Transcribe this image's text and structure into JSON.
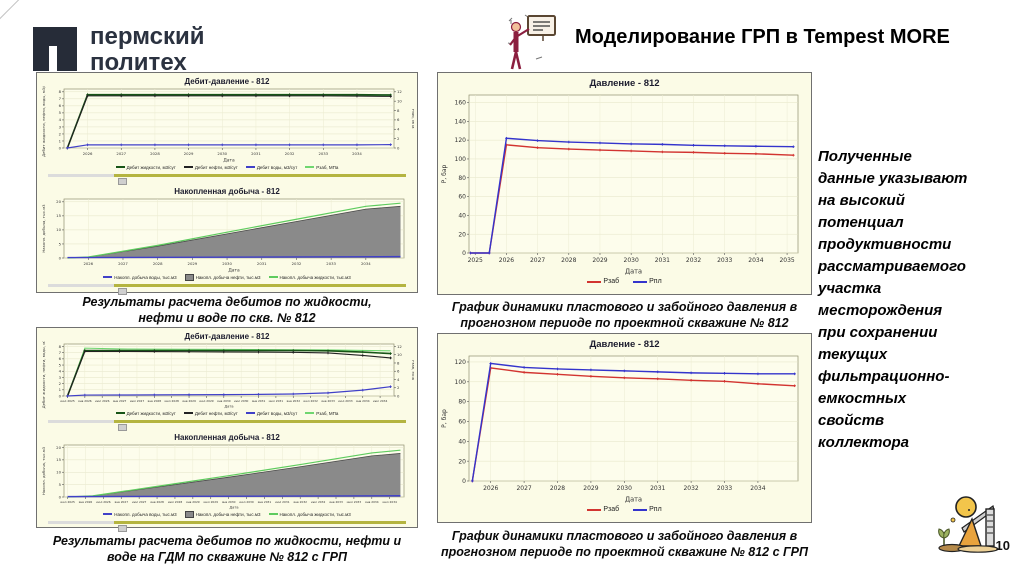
{
  "logo": {
    "line1": "пермский",
    "line2": "политех"
  },
  "header": {
    "title": "Моделирование ГРП в Tempest MORE"
  },
  "conclusion": "Полученные\nданные указывают\nна высокий\nпотенциал\nпродуктивности\nрассматриваемого\nучастка\nместорождения\nпри сохранении\nтекущих\nфильтрационно-\nемкостных\nсвойств\nколлектора",
  "captions": {
    "a": "Результаты расчета дебитов по жидкости,\nнефти и воде по скв. № 812",
    "b": "Результаты расчета дебитов по жидкости, нефти и\nводе на ГДМ по скважине № 812 с ГРП",
    "c": "График динамики пластового и забойного давления в\nпрогнозном периоде по проектной скважине № 812",
    "d": "График динамики пластового и забойного давления в\nпрогнозном периоде по проектной скважине № 812 с ГРП"
  },
  "page_number": "10",
  "colors": {
    "panel_bg": "#fbfbe6",
    "dark_green": "#175417",
    "light_green": "#6fd66f",
    "blue": "#4040c8",
    "red": "#d23430",
    "gray_fill": "#8a8a8a",
    "logo_navy": "#262c38",
    "scroll_olive": "#b4b440"
  },
  "chart_data": [
    {
      "id": "chartA1",
      "type": "line",
      "title": "Дебит-давление - 812",
      "xlabel": "Дата",
      "ylabel": "Дебит жидкости, нефти, воды, м3/сут",
      "ylabel_right": "Pзаб, МПа",
      "xlim": [
        2025.3,
        2035.1
      ],
      "ylim": [
        0,
        8.4
      ],
      "ylim_right": [
        0,
        12.6
      ],
      "xticks": [
        2026,
        2027,
        2028,
        2029,
        2030,
        2031,
        2032,
        2033,
        2034
      ],
      "yticks": [
        0,
        1,
        2,
        3,
        4,
        5,
        6,
        7,
        8
      ],
      "yticks_right": [
        0,
        2,
        4,
        6,
        8,
        10,
        12
      ],
      "series": [
        {
          "name": "Pзаб, МПа",
          "axis": "right",
          "color": "#6fd66f",
          "w": 1.1,
          "x": [
            2025.4,
            2026,
            2028,
            2030,
            2032,
            2034,
            2035
          ],
          "y": [
            0,
            11.35,
            11.3,
            11.3,
            11.25,
            11.2,
            11.2
          ]
        },
        {
          "name": "Дебит жидкости, м3/сут",
          "color": "#175417",
          "w": 1.6,
          "m": true,
          "x": [
            2025.4,
            2026,
            2027,
            2028,
            2029,
            2030,
            2031,
            2032,
            2033,
            2034,
            2035
          ],
          "y": [
            0,
            7.6,
            7.6,
            7.6,
            7.6,
            7.6,
            7.6,
            7.6,
            7.6,
            7.6,
            7.55
          ]
        },
        {
          "name": "Дебит нефти, м3/сут",
          "color": "#222222",
          "w": 1.1,
          "m": true,
          "x": [
            2025.4,
            2026,
            2027,
            2028,
            2029,
            2030,
            2031,
            2032,
            2033,
            2034,
            2035
          ],
          "y": [
            0,
            7.42,
            7.42,
            7.42,
            7.42,
            7.42,
            7.42,
            7.42,
            7.42,
            7.4,
            7.35
          ]
        },
        {
          "name": "Дебит воды, м3/сут",
          "color": "#4040c8",
          "w": 1.2,
          "m": true,
          "x": [
            2025.4,
            2026,
            2027,
            2028,
            2029,
            2030,
            2031,
            2032,
            2033,
            2034,
            2035
          ],
          "y": [
            0,
            0.45,
            0.45,
            0.45,
            0.45,
            0.45,
            0.45,
            0.45,
            0.45,
            0.45,
            0.48
          ]
        }
      ],
      "legend": [
        {
          "label": "Дебит жидкости, м3/сут",
          "color": "#175417",
          "type": "line"
        },
        {
          "label": "Дебит нефти, м3/сут",
          "color": "#222222",
          "type": "line"
        },
        {
          "label": "Дебит воды, м3/сут",
          "color": "#4040c8",
          "type": "line"
        },
        {
          "label": "Pзаб, МПа",
          "color": "#6fd66f",
          "type": "line"
        }
      ]
    },
    {
      "id": "chartA2",
      "type": "area",
      "title": "Накопленная добыча - 812",
      "xlabel": "Дата",
      "ylabel": "Накопл. добыча, тыс.м3",
      "xlim": [
        2025.3,
        2035.1
      ],
      "ylim": [
        0,
        21
      ],
      "xticks": [
        2026,
        2027,
        2028,
        2029,
        2030,
        2031,
        2032,
        2033,
        2034
      ],
      "yticks": [
        0,
        5,
        10,
        15,
        20
      ],
      "series": [
        {
          "name": "Накопл. добыча нефти, тыс.м3",
          "color": "#4a4a4a",
          "w": 0.8,
          "fill": "#8a8a8a",
          "x": [
            2025.4,
            2026,
            2028,
            2030,
            2032,
            2034,
            2035
          ],
          "y": [
            0,
            0.3,
            4.2,
            8.6,
            13.0,
            17.4,
            18.4
          ]
        },
        {
          "name": "Накопл. добыча жидкости, тыс.м3",
          "color": "#5ecb5e",
          "w": 1.2,
          "x": [
            2025.4,
            2026,
            2028,
            2030,
            2032,
            2034,
            2035
          ],
          "y": [
            0,
            0.35,
            4.5,
            9.2,
            13.8,
            18.4,
            19.5
          ]
        },
        {
          "name": "Накопл. добыча воды, тыс.м3",
          "color": "#4040c8",
          "w": 1.4,
          "x": [
            2025.4,
            2035
          ],
          "y": [
            0.15,
            0.5
          ]
        }
      ],
      "legend": [
        {
          "label": "Накопл. добыча воды, тыс.м3",
          "color": "#4040c8",
          "type": "line"
        },
        {
          "label": "Накопл. добыча нефти, тыс.м3",
          "color": "#8a8a8a",
          "type": "box"
        },
        {
          "label": "Накопл. добыча жидкости, тыс.м3",
          "color": "#5ecb5e",
          "type": "line"
        }
      ]
    },
    {
      "id": "chartB1",
      "type": "line",
      "title": "Дебит-давление - 812",
      "xlabel": "Дата",
      "ylabel": "Дебит жидкости, нефти, воды, м3/сут",
      "ylabel_right": "Pзаб, МПа",
      "xlim": [
        2025.4,
        2034.9
      ],
      "ylim": [
        0,
        8.4
      ],
      "ylim_right": [
        0,
        12.6
      ],
      "xticks": [
        2025.5,
        2026,
        2026.5,
        2027,
        2027.5,
        2028,
        2028.5,
        2029,
        2029.5,
        2030,
        2030.5,
        2031,
        2031.5,
        2032,
        2032.5,
        2033,
        2033.5,
        2034,
        2034.5
      ],
      "xtick_labels": [
        "июл 2025",
        "янв 2026",
        "июл 2026",
        "янв 2027",
        "июл 2027",
        "янв 2028",
        "июл 2028",
        "янв 2029",
        "июл 2029",
        "янв 2030",
        "июл 2030",
        "янв 2031",
        "июл 2031",
        "янв 2032",
        "июл 2032",
        "янв 2033",
        "июл 2033",
        "янв 2034",
        "июл 2034"
      ],
      "yticks": [
        0,
        1,
        2,
        3,
        4,
        5,
        6,
        7,
        8
      ],
      "yticks_right": [
        0,
        2,
        4,
        6,
        8,
        10,
        12
      ],
      "series": [
        {
          "name": "Pзаб, МПа",
          "axis": "right",
          "color": "#6fd66f",
          "w": 1.1,
          "x": [
            2025.5,
            2026,
            2027,
            2028,
            2030,
            2032,
            2033,
            2034,
            2034.8
          ],
          "y": [
            0,
            11.6,
            11.4,
            11.35,
            11.3,
            11.2,
            11.15,
            11.05,
            10.95
          ]
        },
        {
          "name": "Дебит жидкости, м3/сут",
          "color": "#175417",
          "w": 1.6,
          "m": true,
          "x": [
            2025.5,
            2026,
            2027,
            2028,
            2029,
            2030,
            2031,
            2032,
            2033,
            2034,
            2034.8
          ],
          "y": [
            0,
            7.35,
            7.35,
            7.35,
            7.35,
            7.35,
            7.35,
            7.35,
            7.3,
            7.1,
            6.85
          ]
        },
        {
          "name": "Дебит нефти, м3/сут",
          "color": "#222222",
          "w": 1.1,
          "m": true,
          "x": [
            2025.5,
            2026,
            2027,
            2028,
            2029,
            2030,
            2031,
            2032,
            2033,
            2034,
            2034.8
          ],
          "y": [
            0,
            7.2,
            7.2,
            7.18,
            7.15,
            7.12,
            7.1,
            7.05,
            6.95,
            6.55,
            6.15
          ]
        },
        {
          "name": "Дебит воды, м3/сут",
          "color": "#4040c8",
          "w": 1.2,
          "m": true,
          "x": [
            2025.5,
            2026,
            2027,
            2028,
            2029,
            2030,
            2031,
            2032,
            2033,
            2034,
            2034.8
          ],
          "y": [
            0,
            0.15,
            0.16,
            0.18,
            0.2,
            0.22,
            0.26,
            0.32,
            0.5,
            0.95,
            1.5
          ]
        }
      ],
      "legend": [
        {
          "label": "Дебит жидкости, м3/сут",
          "color": "#175417",
          "type": "line"
        },
        {
          "label": "Дебит нефти, м3/сут",
          "color": "#222222",
          "type": "line"
        },
        {
          "label": "Дебит воды, м3/сут",
          "color": "#4040c8",
          "type": "line"
        },
        {
          "label": "Pзаб, МПа",
          "color": "#6fd66f",
          "type": "line"
        }
      ]
    },
    {
      "id": "chartB2",
      "type": "area",
      "title": "Накопленная добыча - 812",
      "xlabel": "Дата",
      "ylabel": "Накопл. добыча, тыс.м3",
      "xlim": [
        2025.4,
        2034.9
      ],
      "ylim": [
        0,
        21
      ],
      "xticks": [
        2025.5,
        2026,
        2026.5,
        2027,
        2027.5,
        2028,
        2028.5,
        2029,
        2029.5,
        2030,
        2030.5,
        2031,
        2031.5,
        2032,
        2032.5,
        2033,
        2033.5,
        2034,
        2034.5
      ],
      "xtick_labels": [
        "июл 2025",
        "янв 2026",
        "июл 2026",
        "янв 2027",
        "июл 2027",
        "янв 2028",
        "июл 2028",
        "янв 2029",
        "июл 2029",
        "янв 2030",
        "июл 2030",
        "янв 2031",
        "июл 2031",
        "янв 2032",
        "июл 2032",
        "янв 2033",
        "июл 2033",
        "янв 2034",
        "июл 2034"
      ],
      "yticks": [
        0,
        5,
        10,
        15,
        20
      ],
      "series": [
        {
          "name": "Накопл. добыча нефти, тыс.м3",
          "color": "#4a4a4a",
          "w": 0.8,
          "fill": "#8a8a8a",
          "x": [
            2025.5,
            2026.2,
            2028,
            2030,
            2032,
            2034,
            2034.8
          ],
          "y": [
            0,
            0.4,
            4.0,
            8.0,
            12.2,
            16.6,
            17.6
          ]
        },
        {
          "name": "Накопл. добыча жидкости, тыс.м3",
          "color": "#5ecb5e",
          "w": 1.2,
          "x": [
            2025.5,
            2026.2,
            2028,
            2030,
            2032,
            2034,
            2034.8
          ],
          "y": [
            0,
            0.45,
            4.3,
            8.6,
            13.1,
            17.8,
            18.9
          ]
        },
        {
          "name": "Накопл. добыча воды, тыс.м3",
          "color": "#4040c8",
          "w": 1.4,
          "x": [
            2025.5,
            2034.8
          ],
          "y": [
            0.15,
            0.5
          ]
        }
      ],
      "legend": [
        {
          "label": "Накопл. добыча воды, тыс.м3",
          "color": "#4040c8",
          "type": "line"
        },
        {
          "label": "Накопл. добыча нефти, тыс.м3",
          "color": "#8a8a8a",
          "type": "box"
        },
        {
          "label": "Накопл. добыча жидкости, тыс.м3",
          "color": "#5ecb5e",
          "type": "line"
        }
      ]
    },
    {
      "id": "chartC",
      "type": "line",
      "title": "Давление - 812",
      "xlabel": "Дата",
      "ylabel": "P, бар",
      "xlim": [
        2024.8,
        2035.35
      ],
      "ylim": [
        0,
        168
      ],
      "xticks": [
        2025,
        2026,
        2027,
        2028,
        2029,
        2030,
        2031,
        2032,
        2033,
        2034,
        2035
      ],
      "yticks": [
        0,
        20,
        40,
        60,
        80,
        100,
        120,
        140,
        160
      ],
      "series": [
        {
          "name": "Pзаб",
          "color": "#d23430",
          "w": 1.4,
          "m": true,
          "x": [
            2024.85,
            2025.45,
            2026,
            2027,
            2028,
            2029,
            2030,
            2031,
            2032,
            2033,
            2034,
            2035.2
          ],
          "y": [
            0,
            0,
            115,
            112,
            110.5,
            109.5,
            108.5,
            107.5,
            107,
            106,
            105.5,
            104
          ]
        },
        {
          "name": "Pпл",
          "color": "#3434cc",
          "w": 1.4,
          "m": true,
          "x": [
            2024.85,
            2025.45,
            2026,
            2027,
            2028,
            2029,
            2030,
            2031,
            2032,
            2033,
            2034,
            2035.2
          ],
          "y": [
            0,
            0,
            122,
            119.5,
            118,
            117,
            116,
            115.5,
            114.5,
            114,
            113.5,
            113
          ]
        }
      ],
      "legend": [
        {
          "label": "Pзаб",
          "color": "#d23430",
          "type": "line"
        },
        {
          "label": "Pпл",
          "color": "#3434cc",
          "type": "line"
        }
      ]
    },
    {
      "id": "chartD",
      "type": "line",
      "title": "Давление - 812",
      "xlabel": "Дата",
      "ylabel": "P, бар",
      "xlim": [
        2025.35,
        2035.2
      ],
      "ylim": [
        0,
        126
      ],
      "xticks": [
        2026,
        2027,
        2028,
        2029,
        2030,
        2031,
        2032,
        2033,
        2034
      ],
      "yticks": [
        0,
        20,
        40,
        60,
        80,
        100,
        120
      ],
      "series": [
        {
          "name": "Pзаб",
          "color": "#d23430",
          "w": 1.4,
          "m": true,
          "x": [
            2025.45,
            2026,
            2027,
            2028,
            2029,
            2030,
            2031,
            2032,
            2033,
            2034,
            2035.1
          ],
          "y": [
            0,
            114,
            109.5,
            107.5,
            105.5,
            104,
            103,
            101.5,
            100.5,
            98,
            96
          ]
        },
        {
          "name": "Pпл",
          "color": "#3434cc",
          "w": 1.4,
          "m": true,
          "x": [
            2025.45,
            2026,
            2027,
            2028,
            2029,
            2030,
            2031,
            2032,
            2033,
            2034,
            2035.1
          ],
          "y": [
            0,
            118.5,
            114.5,
            113,
            112,
            111,
            110,
            109,
            108.5,
            108,
            108
          ]
        }
      ],
      "legend": [
        {
          "label": "Pзаб",
          "color": "#d23430",
          "type": "line"
        },
        {
          "label": "Pпл",
          "color": "#3434cc",
          "type": "line"
        }
      ]
    }
  ]
}
